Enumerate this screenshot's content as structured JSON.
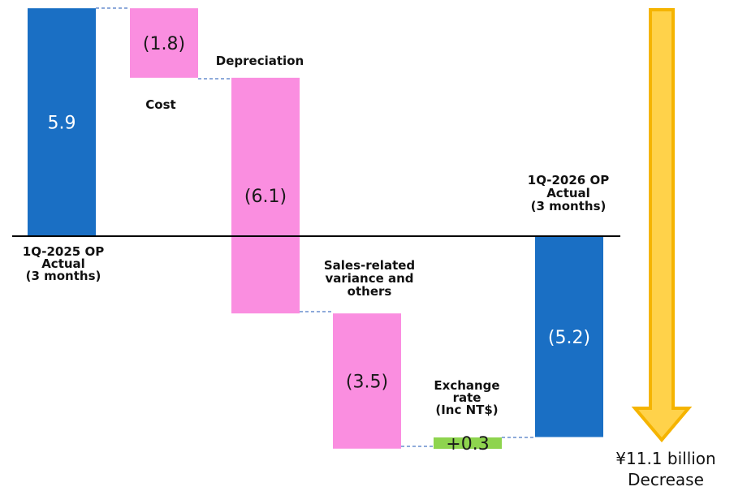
{
  "chart_data": {
    "type": "bar",
    "subtype": "waterfall",
    "unit": "¥ billion",
    "zero_line": true,
    "bars": [
      {
        "key": "start",
        "kind": "total",
        "value": 5.9,
        "value_label": "5.9",
        "label_lines": [
          "1Q-2025 OP",
          "Actual",
          "(3 months)"
        ],
        "color": "#1a6fc4",
        "value_color": "#ffffff"
      },
      {
        "key": "cost",
        "kind": "delta",
        "value": -1.8,
        "value_label": "(1.8)",
        "label_lines": [
          "Cost"
        ],
        "color": "#fa8ee0",
        "value_color": "#1a1a1a"
      },
      {
        "key": "depreciation",
        "kind": "delta",
        "value": -6.1,
        "value_label": "(6.1)",
        "label_lines": [
          "Depreciation"
        ],
        "color": "#fa8ee0",
        "value_color": "#1a1a1a"
      },
      {
        "key": "sales",
        "kind": "delta",
        "value": -3.5,
        "value_label": "(3.5)",
        "label_lines": [
          "Sales-related",
          "variance and",
          "others"
        ],
        "color": "#fa8ee0",
        "value_color": "#1a1a1a"
      },
      {
        "key": "fx",
        "kind": "delta",
        "value": 0.3,
        "value_label": "+0.3",
        "label_lines": [
          "Exchange",
          "rate",
          "(Inc NT$)"
        ],
        "color": "#8ed44e",
        "value_color": "#1a1a1a"
      },
      {
        "key": "end",
        "kind": "total",
        "value": -5.2,
        "value_label": "(5.2)",
        "label_lines": [
          "1Q-2026 OP",
          "Actual",
          "(3 months)"
        ],
        "color": "#1a6fc4",
        "value_color": "#ffffff"
      }
    ],
    "annotation": {
      "lines": [
        "¥11.1 billion",
        "Decrease"
      ],
      "arrow_color": "#ffd24a",
      "arrow_stroke": "#f5b400"
    },
    "connector_color": "#4a78c4",
    "axis_line_color": "#000000"
  }
}
